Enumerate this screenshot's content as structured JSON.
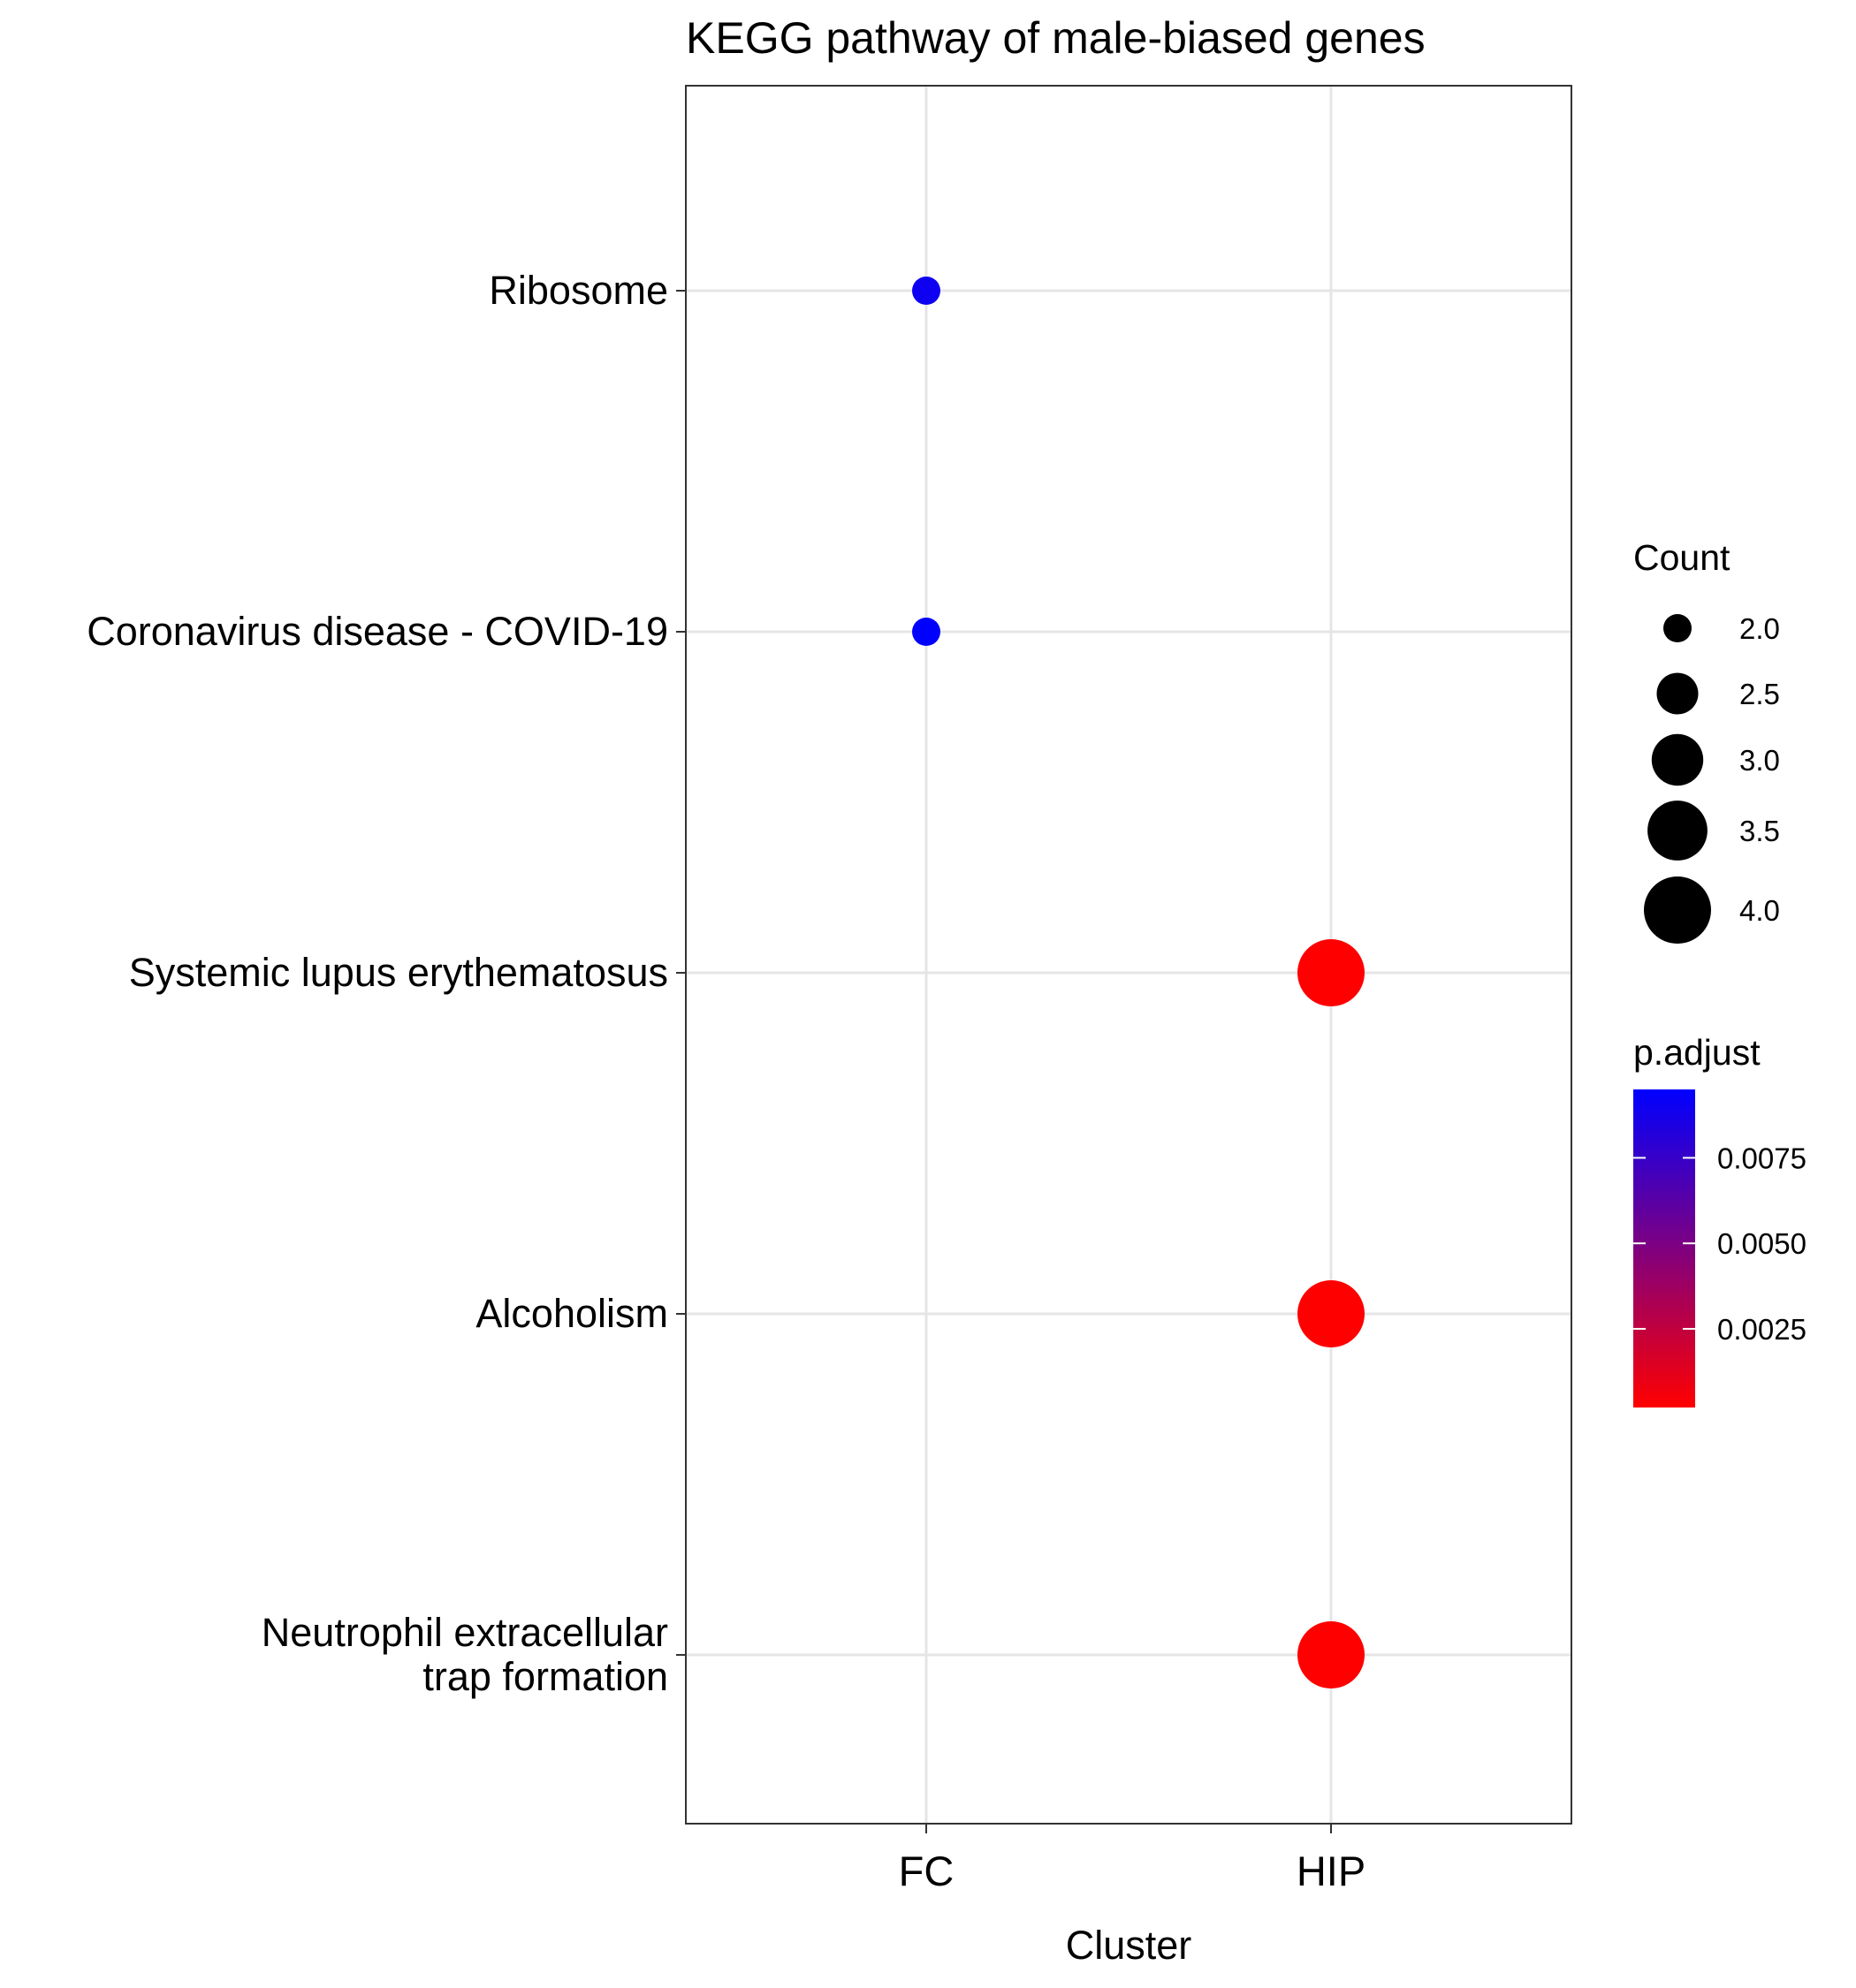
{
  "chart_data": {
    "type": "scatter",
    "title": "KEGG pathway of male-biased genes",
    "xlabel": "Cluster",
    "ylabel": "",
    "x_categories": [
      "FC",
      "HIP"
    ],
    "y_categories": [
      [
        "Ribosome"
      ],
      [
        "Coronavirus disease - COVID-19"
      ],
      [
        "Systemic lupus erythematosus"
      ],
      [
        "Alcoholism"
      ],
      [
        "Neutrophil extracellular",
        "trap formation"
      ]
    ],
    "points": [
      {
        "x": "FC",
        "y": 0,
        "count": 2.0,
        "p_adjust": 0.009
      },
      {
        "x": "FC",
        "y": 1,
        "count": 2.0,
        "p_adjust": 0.0095
      },
      {
        "x": "HIP",
        "y": 2,
        "count": 4.0,
        "p_adjust": 0.0002
      },
      {
        "x": "HIP",
        "y": 3,
        "count": 4.0,
        "p_adjust": 0.0002
      },
      {
        "x": "HIP",
        "y": 4,
        "count": 4.0,
        "p_adjust": 0.0002
      }
    ],
    "grid": true,
    "legend_position": "right",
    "size_legend": {
      "title": "Count",
      "values": [
        2.0,
        2.5,
        3.0,
        3.5,
        4.0
      ],
      "labels": [
        "2.0",
        "2.5",
        "3.0",
        "3.5",
        "4.0"
      ]
    },
    "color_legend": {
      "title": "p.adjust",
      "range": [
        0.0002,
        0.0095
      ],
      "low_color": "#ff0000",
      "high_color": "#0000ff",
      "ticks": [
        0.0025,
        0.005,
        0.0075
      ],
      "tick_labels": [
        "0.0025",
        "0.0050",
        "0.0075"
      ]
    }
  }
}
